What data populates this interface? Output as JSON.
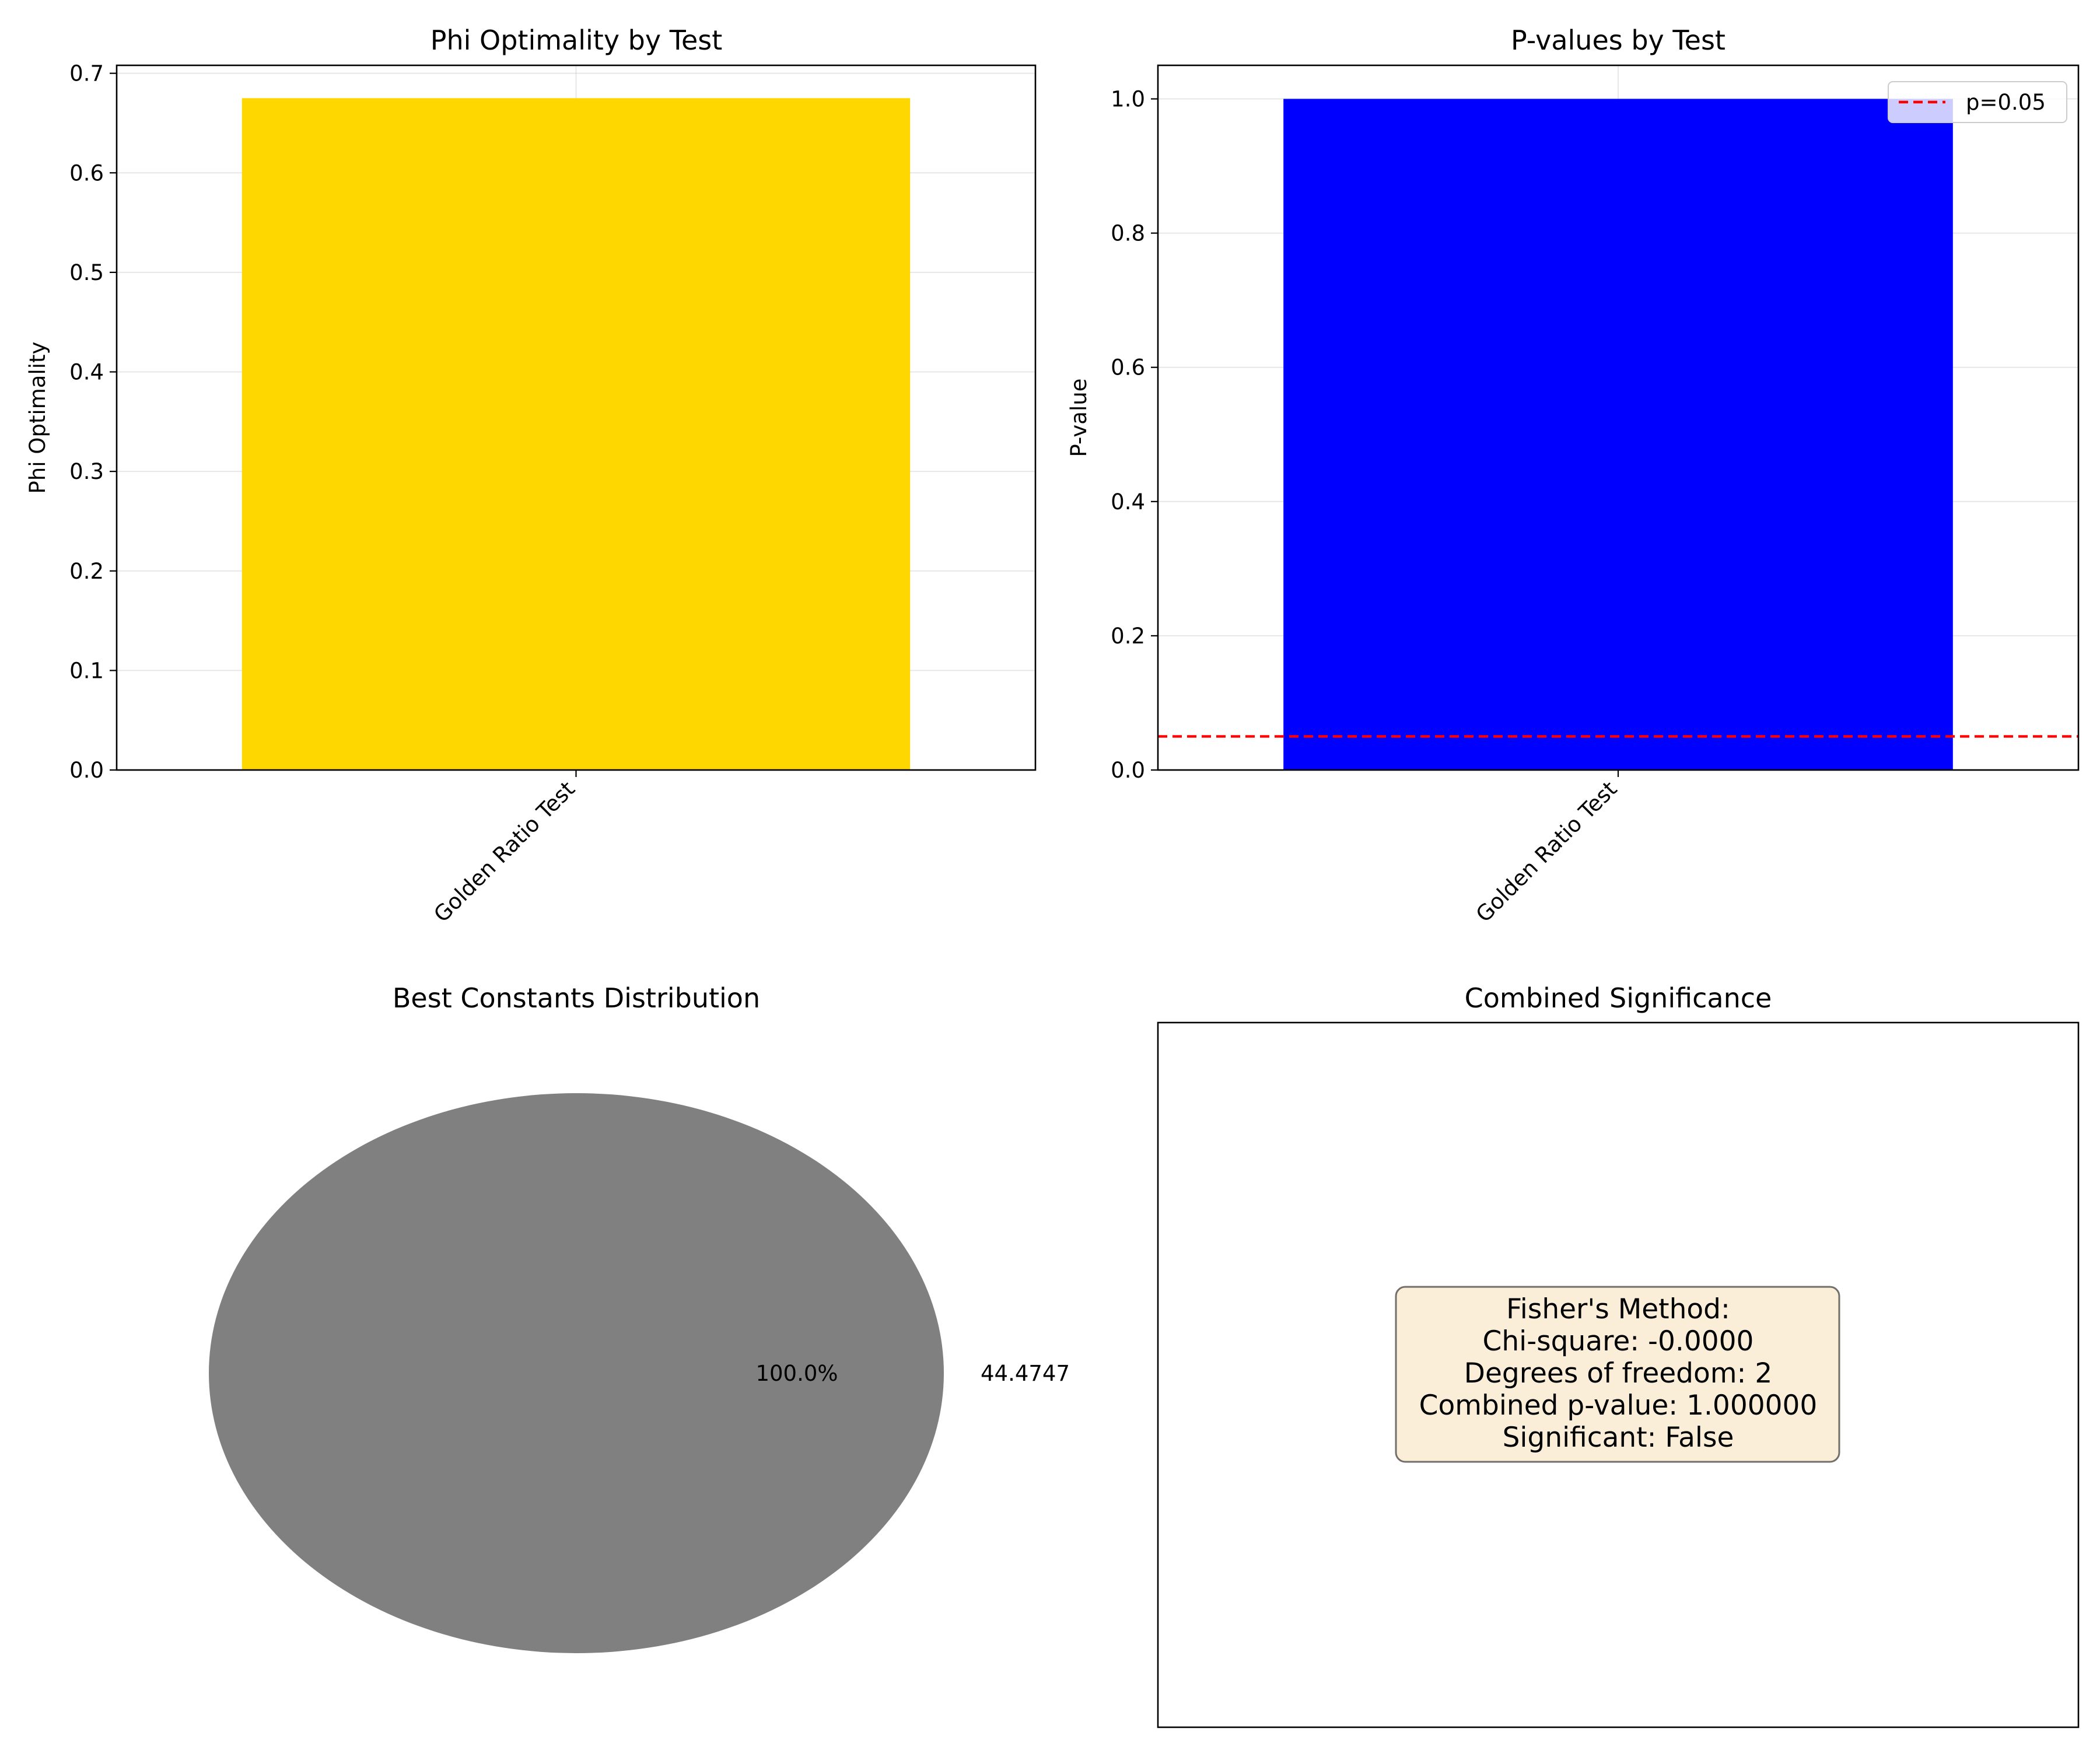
{
  "chart_data": [
    {
      "type": "bar",
      "title": "Phi Optimality by Test",
      "ylabel": "Phi Optimality",
      "xlabel": "",
      "categories": [
        "Golden Ratio Test"
      ],
      "values": [
        0.675
      ],
      "ylim": [
        0,
        0.708
      ],
      "yticks": [
        0.0,
        0.1,
        0.2,
        0.3,
        0.4,
        0.5,
        0.6,
        0.7
      ],
      "ytick_labels": [
        "0.0",
        "0.1",
        "0.2",
        "0.3",
        "0.4",
        "0.5",
        "0.6",
        "0.7"
      ],
      "color": "#FFD700",
      "grid": true
    },
    {
      "type": "bar",
      "title": "P-values by Test",
      "ylabel": "P-value",
      "xlabel": "",
      "categories": [
        "Golden Ratio Test"
      ],
      "values": [
        1.0
      ],
      "ylim": [
        0,
        1.05
      ],
      "yticks": [
        0.0,
        0.2,
        0.4,
        0.6,
        0.8,
        1.0
      ],
      "ytick_labels": [
        "0.0",
        "0.2",
        "0.4",
        "0.6",
        "0.8",
        "1.0"
      ],
      "color": "#0000FF",
      "grid": true,
      "reference_line": {
        "y": 0.05,
        "label": "p=0.05",
        "color": "#FF0000",
        "style": "dashed"
      },
      "legend": {
        "position": "top-right",
        "entries": [
          "p=0.05"
        ]
      }
    },
    {
      "type": "pie",
      "title": "Best Constants Distribution",
      "labels": [
        "44.4747"
      ],
      "values": [
        100
      ],
      "percent_labels": [
        "100.0%"
      ],
      "colors": [
        "#808080"
      ]
    },
    {
      "type": "table",
      "title": "Combined Significance",
      "lines": [
        "Fisher's Method:",
        "Chi-square: -0.0000",
        "Degrees of freedom: 2",
        "Combined p-value: 1.000000",
        "Significant: False"
      ],
      "box_color": "#F5DEB3"
    }
  ]
}
